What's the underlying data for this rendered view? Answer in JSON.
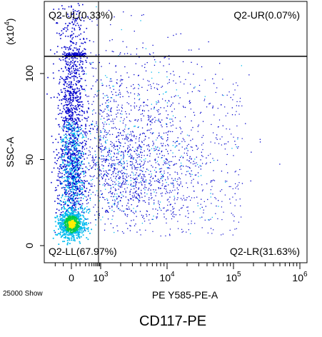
{
  "chart_data": {
    "type": "scatter",
    "style": "density-pseudocolor",
    "xlabel": "PE Y585-PE-A",
    "ylabel": "SSC-A",
    "y_multiplier": "(x10⁴)",
    "y_multiplier_base": "(x10",
    "y_multiplier_exp": "4",
    "x_scale": "biexponential",
    "y_scale": "linear",
    "ylim": [
      -3,
      140
    ],
    "y_ticks": [
      {
        "value": 0,
        "label": "0"
      },
      {
        "value": 50,
        "label": "50"
      },
      {
        "value": 100,
        "label": "100"
      }
    ],
    "x_ticks": [
      {
        "value": 0,
        "base": "0",
        "exp": ""
      },
      {
        "value": 1000,
        "base": "10",
        "exp": "3"
      },
      {
        "value": 10000,
        "base": "10",
        "exp": "4"
      },
      {
        "value": 100000,
        "base": "10",
        "exp": "5"
      },
      {
        "value": 1000000,
        "base": "10",
        "exp": "6"
      }
    ],
    "gate": {
      "x": 800,
      "y": 110
    },
    "quadrants": {
      "ul": "Q2-UL(0.33%)",
      "ur": "Q2-UR(0.07%)",
      "ll": "Q2-LL(67.97%)",
      "lr": "Q2-LR(31.63%)"
    },
    "events_shown": "25000 Show",
    "colors": {
      "low": "#0000cc",
      "mid": "#00bbee",
      "high": "#00cc44",
      "peak": "#ffee00",
      "gate_line": "#000000"
    }
  },
  "caption": "CD117-PE"
}
